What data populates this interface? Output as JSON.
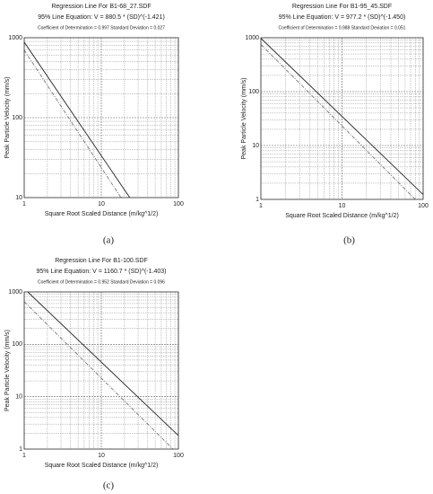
{
  "chart_data": [
    {
      "type": "line",
      "title": "Regression Line For B1-68_27.SDF",
      "subtitle": "95% Line Equation: V = 880.5 * (SD)^(-1.421)",
      "annotation": "Coefficient of Determination = 0.997  Standard Deviation = 0.027",
      "xlabel": "Square Root Scaled Distance (m/kg^1/2)",
      "ylabel": "Peak Particle Velocity (mm/s)",
      "panel_label": "(a)",
      "xscale": "log",
      "yscale": "log",
      "xlim": [
        1,
        100
      ],
      "ylim": [
        10,
        1000
      ],
      "xticks": [
        1,
        10,
        100
      ],
      "yticks": [
        10,
        100,
        1000
      ],
      "grid": true,
      "minor_grid": true,
      "series": [
        {
          "color": "#222222",
          "dash": false,
          "x": [
            1,
            23.4
          ],
          "values": [
            880.5,
            10
          ]
        },
        {
          "color": "#777777",
          "dash": true,
          "x": [
            1,
            18
          ],
          "values": [
            700,
            10
          ]
        }
      ]
    },
    {
      "type": "line",
      "title": "Regression Line For B1-95_45.SDF",
      "subtitle": "95% Line Equation: V = 977.2 * (SD)^(-1.450)",
      "annotation": "Coefficient of Determination = 0.988  Standard Deviation = 0.051",
      "xlabel": "Square Root Scaled Distance (m/kg^1/2)",
      "ylabel": "Peak Particle Velocity (mm/s)",
      "panel_label": "(b)",
      "xscale": "log",
      "yscale": "log",
      "xlim": [
        1,
        100
      ],
      "ylim": [
        1,
        1000
      ],
      "xticks": [
        1,
        10,
        100
      ],
      "yticks": [
        1,
        10,
        100,
        1000
      ],
      "grid": true,
      "minor_grid": true,
      "series": [
        {
          "color": "#222222",
          "dash": false,
          "x": [
            1,
            100
          ],
          "values": [
            977.2,
            1.23
          ]
        },
        {
          "color": "#777777",
          "dash": true,
          "x": [
            1,
            80
          ],
          "values": [
            750,
            1
          ]
        }
      ]
    },
    {
      "type": "line",
      "title": "Regression Line For B1-100.SDF",
      "subtitle": "95% Line Equation: V = 1160.7 * (SD)^(-1.403)",
      "annotation": "Coefficient of Determination = 0.952  Standard Deviation = 0.096",
      "xlabel": "Square Root Scaled Distance (m/kg^1/2)",
      "ylabel": "Peak Particle Velocity (mm/s)",
      "panel_label": "(c)",
      "xscale": "log",
      "yscale": "log",
      "xlim": [
        1,
        100
      ],
      "ylim": [
        1,
        1000
      ],
      "xticks": [
        1,
        10,
        100
      ],
      "yticks": [
        1,
        10,
        100,
        1000
      ],
      "grid": true,
      "minor_grid": true,
      "series": [
        {
          "color": "#222222",
          "dash": false,
          "x": [
            1.11,
            100
          ],
          "values": [
            1000,
            1.81
          ]
        },
        {
          "color": "#777777",
          "dash": true,
          "x": [
            1,
            85
          ],
          "values": [
            650,
            1
          ]
        }
      ]
    }
  ]
}
